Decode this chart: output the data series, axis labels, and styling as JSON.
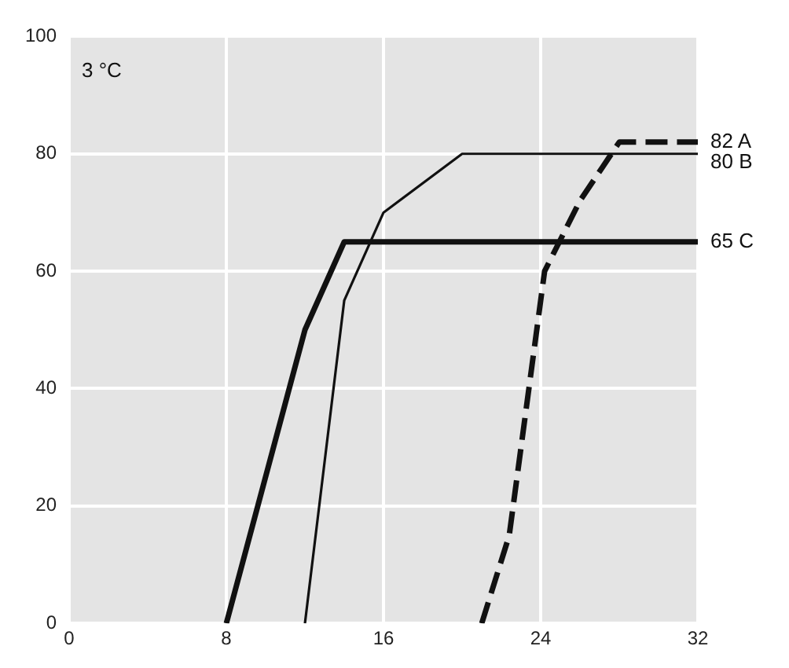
{
  "chart_data": {
    "type": "line",
    "xlim": [
      0,
      32
    ],
    "xticks": [
      0,
      8,
      16,
      24,
      32
    ],
    "ylim": [
      0,
      100
    ],
    "yticks": [
      0,
      20,
      40,
      60,
      80,
      100
    ],
    "grid": true,
    "marker": "none",
    "series": [
      {
        "name": "82 A",
        "color": "#111111",
        "line_style": "dashed",
        "x": [
          21,
          22.4,
          24.2,
          26,
          28,
          32
        ],
        "values": [
          0,
          15,
          60,
          72,
          82,
          82
        ]
      },
      {
        "name": "80 B",
        "color": "#111111",
        "line_style": "solid",
        "x": [
          12,
          14,
          16,
          20,
          32
        ],
        "values": [
          0,
          55,
          70,
          80,
          80
        ]
      },
      {
        "name": "65 C",
        "color": "#111111",
        "line_style": "solid",
        "x": [
          8,
          12,
          14,
          32
        ],
        "values": [
          0,
          50,
          65,
          65
        ]
      }
    ],
    "annotations": [
      "3 °C"
    ]
  }
}
